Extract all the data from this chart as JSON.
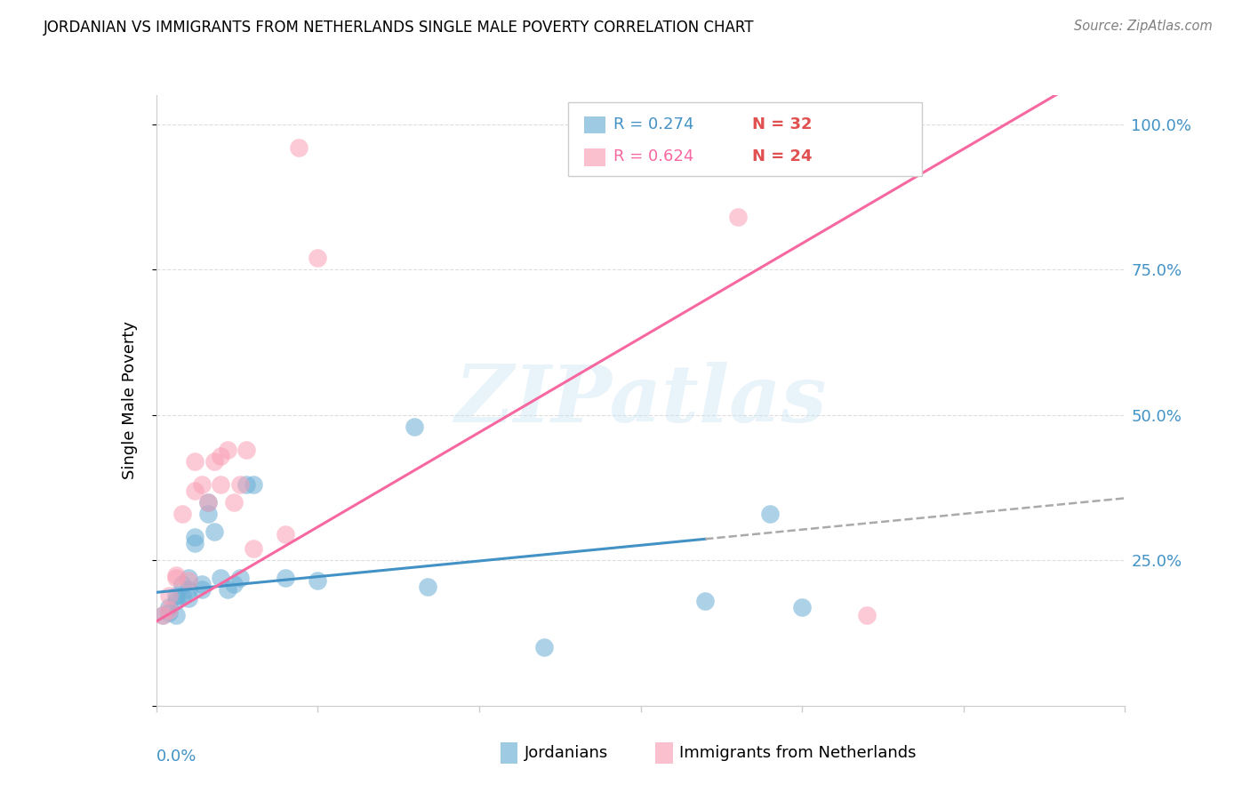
{
  "title": "JORDANIAN VS IMMIGRANTS FROM NETHERLANDS SINGLE MALE POVERTY CORRELATION CHART",
  "source": "Source: ZipAtlas.com",
  "ylabel": "Single Male Poverty",
  "xlim": [
    0,
    0.15
  ],
  "ylim": [
    0,
    1.05
  ],
  "color_blue": "#6baed6",
  "color_pink": "#fa9fb5",
  "color_blue_line": "#4292c6",
  "color_pink_line": "#f768a1",
  "color_gray_dash": "#aaaaaa",
  "watermark": "ZIPatlas",
  "legend_label1": "Jordanians",
  "legend_label2": "Immigrants from Netherlands",
  "legend_r1": "R = 0.274",
  "legend_n1": "N = 32",
  "legend_r2": "R = 0.624",
  "legend_n2": "N = 24",
  "jordanians_x": [
    0.001,
    0.002,
    0.002,
    0.003,
    0.003,
    0.003,
    0.004,
    0.004,
    0.005,
    0.005,
    0.005,
    0.006,
    0.006,
    0.007,
    0.007,
    0.008,
    0.008,
    0.009,
    0.01,
    0.011,
    0.012,
    0.013,
    0.014,
    0.015,
    0.02,
    0.025,
    0.04,
    0.042,
    0.06,
    0.085,
    0.095,
    0.1
  ],
  "jordanians_y": [
    0.155,
    0.16,
    0.17,
    0.18,
    0.19,
    0.155,
    0.21,
    0.19,
    0.185,
    0.2,
    0.22,
    0.29,
    0.28,
    0.2,
    0.21,
    0.33,
    0.35,
    0.3,
    0.22,
    0.2,
    0.21,
    0.22,
    0.38,
    0.38,
    0.22,
    0.215,
    0.48,
    0.205,
    0.1,
    0.18,
    0.33,
    0.17
  ],
  "netherlands_x": [
    0.001,
    0.002,
    0.002,
    0.003,
    0.003,
    0.004,
    0.005,
    0.006,
    0.006,
    0.007,
    0.008,
    0.009,
    0.01,
    0.01,
    0.011,
    0.012,
    0.013,
    0.014,
    0.015,
    0.02,
    0.022,
    0.025,
    0.09,
    0.11
  ],
  "netherlands_y": [
    0.155,
    0.165,
    0.19,
    0.22,
    0.225,
    0.33,
    0.215,
    0.37,
    0.42,
    0.38,
    0.35,
    0.42,
    0.43,
    0.38,
    0.44,
    0.35,
    0.38,
    0.44,
    0.27,
    0.295,
    0.96,
    0.77,
    0.84,
    0.155
  ],
  "jordan_slope": 1.08,
  "jordan_intercept": 0.195,
  "nether_slope": 6.5,
  "nether_intercept": 0.145,
  "ytick_vals": [
    0.0,
    0.25,
    0.5,
    0.75,
    1.0
  ],
  "ytick_labels": [
    "",
    "25.0%",
    "50.0%",
    "75.0%",
    "100.0%"
  ],
  "xtick_positions": [
    0.0,
    0.025,
    0.05,
    0.075,
    0.1,
    0.125,
    0.15
  ]
}
